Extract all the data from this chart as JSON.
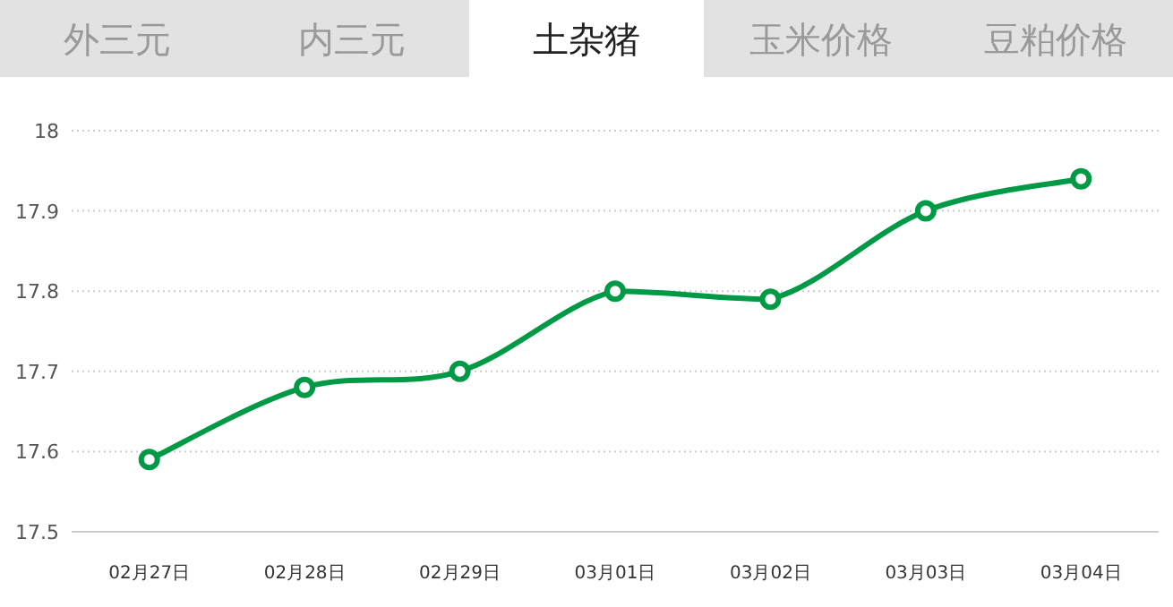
{
  "chart_data": {
    "type": "line",
    "title": "土杂猪",
    "annotations": [
      "外三元",
      "内三元",
      "玉米价格",
      "豆粕价格"
    ],
    "categories": [
      "02月27日",
      "02月28日",
      "02月29日",
      "03月01日",
      "03月02日",
      "03月03日",
      "03月04日"
    ],
    "values": [
      17.59,
      17.68,
      17.7,
      17.8,
      17.79,
      17.9,
      17.94
    ],
    "color": "#009a47",
    "ylim": [
      17.5,
      18
    ],
    "yticks": [
      17.5,
      17.6,
      17.7,
      17.8,
      17.9,
      18
    ],
    "grid": "y",
    "marker": "circle",
    "line_style": "solid"
  }
}
